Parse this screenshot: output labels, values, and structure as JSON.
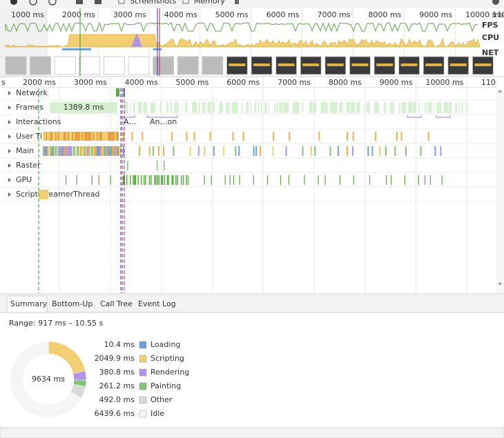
{
  "toolbar": {
    "screenshots": "Screenshots",
    "memory": "Memory"
  },
  "overview": {
    "ruler": [
      "1000 ms",
      "2000 ms",
      "3000 ms",
      "4000 ms",
      "5000 ms",
      "6000 ms",
      "7000 ms",
      "8000 ms",
      "9000 ms",
      "10000 ms",
      "110"
    ],
    "lanes": [
      "FPS",
      "CPU",
      "NET"
    ]
  },
  "timeline": {
    "ruler": [
      "s",
      "2000 ms",
      "3000 ms",
      "4000 ms",
      "5000 ms",
      "6000 ms",
      "7000 ms",
      "8000 ms",
      "9000 ms",
      "10000 ms",
      "110"
    ],
    "tracks": [
      "Network",
      "Frames",
      "Interactions",
      "User Timing",
      "Main",
      "Raster",
      "GPU",
      "ScriptStreamerThread"
    ],
    "frame_label": "1389.8 ms",
    "interactions": [
      "A…",
      "An…on"
    ]
  },
  "tabs": [
    "Summary",
    "Bottom-Up",
    "Call Tree",
    "Event Log"
  ],
  "summary": {
    "range": "Range: 917 ms – 10.55 s",
    "total": "9634 ms",
    "items": [
      {
        "value": 10.4,
        "label": "10.4 ms",
        "name": "Loading",
        "color": "#6fa0dc"
      },
      {
        "value": 2049.9,
        "label": "2049.9 ms",
        "name": "Scripting",
        "color": "#f2cf73"
      },
      {
        "value": 380.8,
        "label": "380.8 ms",
        "name": "Rendering",
        "color": "#b293eb"
      },
      {
        "value": 261.2,
        "label": "261.2 ms",
        "name": "Painting",
        "color": "#84c27a"
      },
      {
        "value": 492.0,
        "label": "492.0 ms",
        "name": "Other",
        "color": "#d9d9d9"
      },
      {
        "value": 6439.6,
        "label": "6439.6 ms",
        "name": "Idle",
        "color": "#f5f5f5"
      }
    ]
  }
}
